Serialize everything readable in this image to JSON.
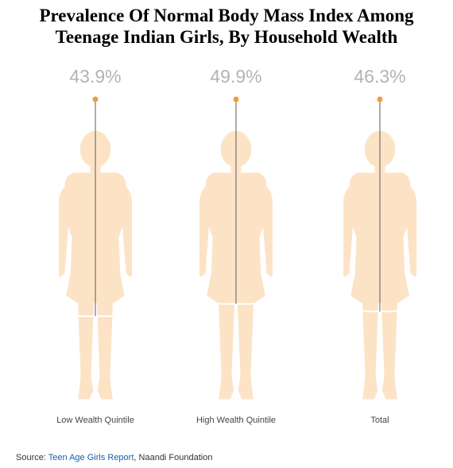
{
  "title_line1": "Prevalence Of Normal Body Mass Index Among",
  "title_line2": "Teenage Indian Girls, By Household Wealth",
  "chart_data": {
    "type": "bar",
    "categories": [
      "Low Wealth Quintile",
      "High Wealth Quintile",
      "Total"
    ],
    "values": [
      43.9,
      49.9,
      46.3
    ],
    "value_labels": [
      "43.9%",
      "49.9%",
      "46.3%"
    ],
    "ylim": [
      0,
      100
    ],
    "colors": {
      "fill": "#f39b38",
      "body": "#fde3c6",
      "marker": "#f39b38",
      "label": "#b3b3b3"
    }
  },
  "source": {
    "prefix": "Source: ",
    "report": "Teen Age Girls Report",
    "suffix": ", Naandi Foundation"
  }
}
